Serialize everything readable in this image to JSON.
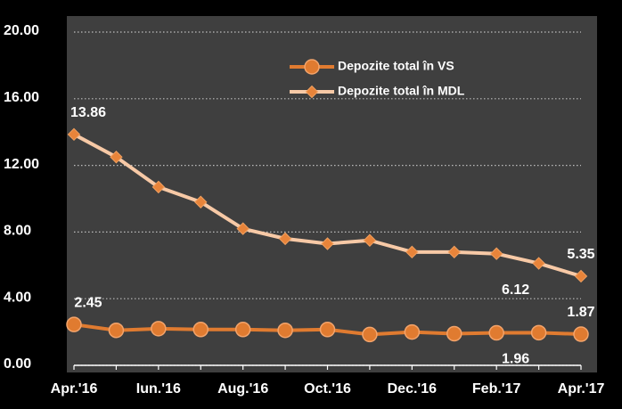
{
  "chart_data": {
    "type": "line",
    "categories": [
      "Apr.'16",
      null,
      "Iun.'16",
      null,
      "Aug.'16",
      null,
      "Oct.'16",
      null,
      "Dec.'16",
      null,
      "Feb.'17",
      null,
      "Apr.'17"
    ],
    "series": [
      {
        "name": "Depozite total în VS",
        "color": "#e07b30",
        "marker": "circle",
        "values": [
          2.45,
          2.1,
          2.2,
          2.15,
          2.15,
          2.1,
          2.15,
          1.85,
          2.0,
          1.9,
          1.95,
          1.96,
          1.87
        ],
        "value_labels": [
          "2.45",
          null,
          null,
          null,
          null,
          null,
          null,
          null,
          null,
          null,
          null,
          "1.96",
          "1.87"
        ]
      },
      {
        "name": "Depozite total în MDL",
        "color": "#f7c9a6",
        "marker": "diamond",
        "marker_color": "#e8843a",
        "values": [
          13.86,
          12.5,
          10.7,
          9.8,
          8.2,
          7.6,
          7.3,
          7.5,
          6.8,
          6.8,
          6.7,
          6.12,
          5.35
        ],
        "value_labels": [
          "13.86",
          null,
          null,
          null,
          null,
          null,
          null,
          null,
          null,
          null,
          null,
          "6.12",
          "5.35"
        ]
      }
    ],
    "ylim": [
      0,
      20
    ],
    "yticks": [
      {
        "value": 0,
        "label": "0.00"
      },
      {
        "value": 4,
        "label": "4.00"
      },
      {
        "value": 8,
        "label": "8.00"
      },
      {
        "value": 12,
        "label": "12.00"
      },
      {
        "value": 16,
        "label": "16.00"
      },
      {
        "value": 20,
        "label": "20.00"
      }
    ],
    "grid": true
  }
}
